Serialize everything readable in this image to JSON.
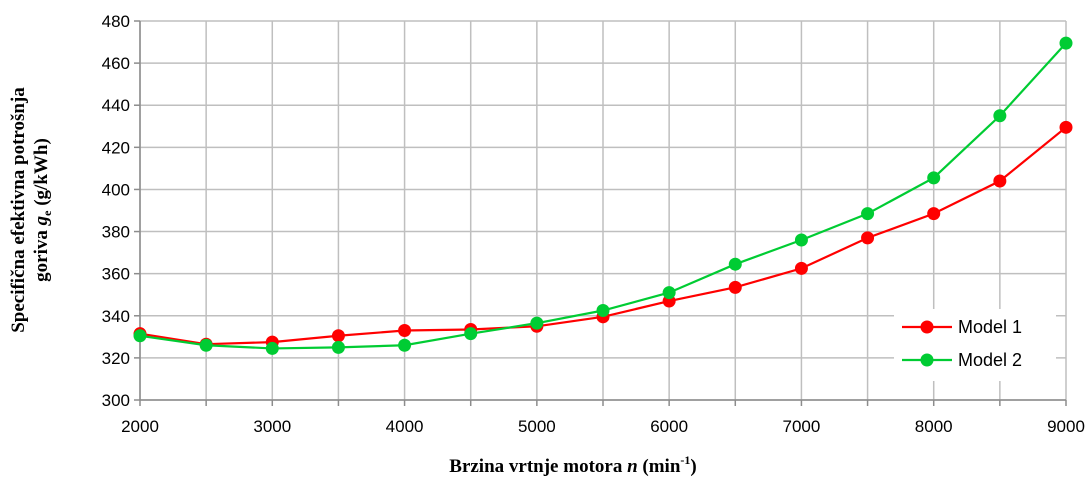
{
  "chart_data": {
    "type": "line",
    "title": "",
    "xlabel": {
      "prefix": "Brzina vrtnje motora ",
      "var": "n",
      "unit_open": " (min",
      "unit_sup": "-1",
      "unit_close": ")"
    },
    "ylabel": {
      "line1": "Specifična efektivna potrošnja",
      "line2_prefix": "goriva ",
      "line2_var": "g",
      "line2_sub": "e",
      "line2_suffix": " (g/kWh)"
    },
    "x": [
      2000,
      2500,
      3000,
      3500,
      4000,
      4500,
      5000,
      5500,
      6000,
      6500,
      7000,
      7500,
      8000,
      8500,
      9000
    ],
    "xlim": [
      2000,
      9000
    ],
    "ylim": [
      300,
      480
    ],
    "x_ticks": [
      2000,
      3000,
      4000,
      5000,
      6000,
      7000,
      8000,
      9000
    ],
    "y_ticks": [
      300,
      320,
      340,
      360,
      380,
      400,
      420,
      440,
      460,
      480
    ],
    "grid": true,
    "legend_position": "bottom-right",
    "series": [
      {
        "name": "Model 1",
        "color": "#ff0000",
        "values": [
          331.5,
          326.5,
          327.5,
          330.5,
          333,
          333.5,
          335,
          339.5,
          347,
          353.5,
          362.5,
          377,
          388.5,
          404,
          429.5
        ]
      },
      {
        "name": "Model 2",
        "color": "#00cc33",
        "values": [
          330.5,
          326,
          324.5,
          325,
          326,
          331.5,
          336.5,
          342.5,
          351,
          364.5,
          376,
          388.5,
          405.5,
          435,
          469.5
        ]
      }
    ]
  }
}
